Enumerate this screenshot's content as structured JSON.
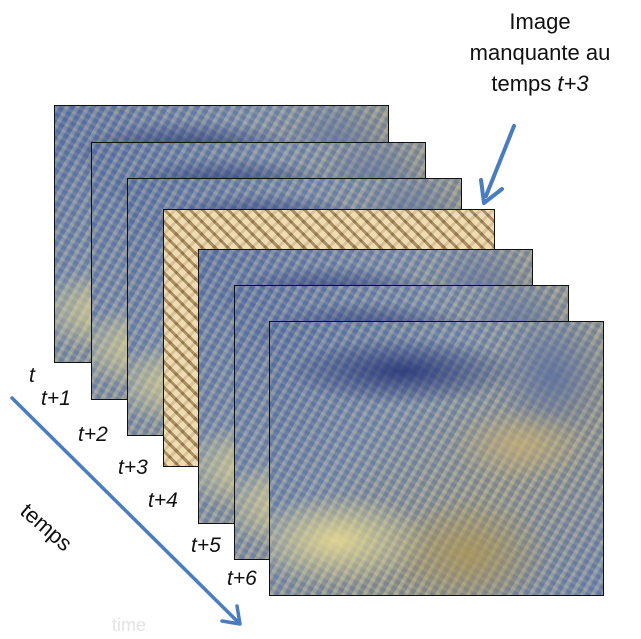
{
  "annotation": {
    "line1": "Image",
    "line2": "manquante au",
    "line3_prefix": "temps ",
    "line3_time": "t+3"
  },
  "frames": [
    {
      "label": "t",
      "kind": "satellite"
    },
    {
      "label": "t+1",
      "kind": "satellite"
    },
    {
      "label": "t+2",
      "kind": "satellite"
    },
    {
      "label": "t+3",
      "kind": "missing"
    },
    {
      "label": "t+4",
      "kind": "satellite"
    },
    {
      "label": "t+5",
      "kind": "satellite"
    },
    {
      "label": "t+6",
      "kind": "satellite"
    }
  ],
  "axis": {
    "label": "temps"
  },
  "watermark": "time",
  "colors": {
    "arrow": "#4a7cc0",
    "frame_border": "#111111",
    "missing_frame": "#d9bf8a"
  }
}
